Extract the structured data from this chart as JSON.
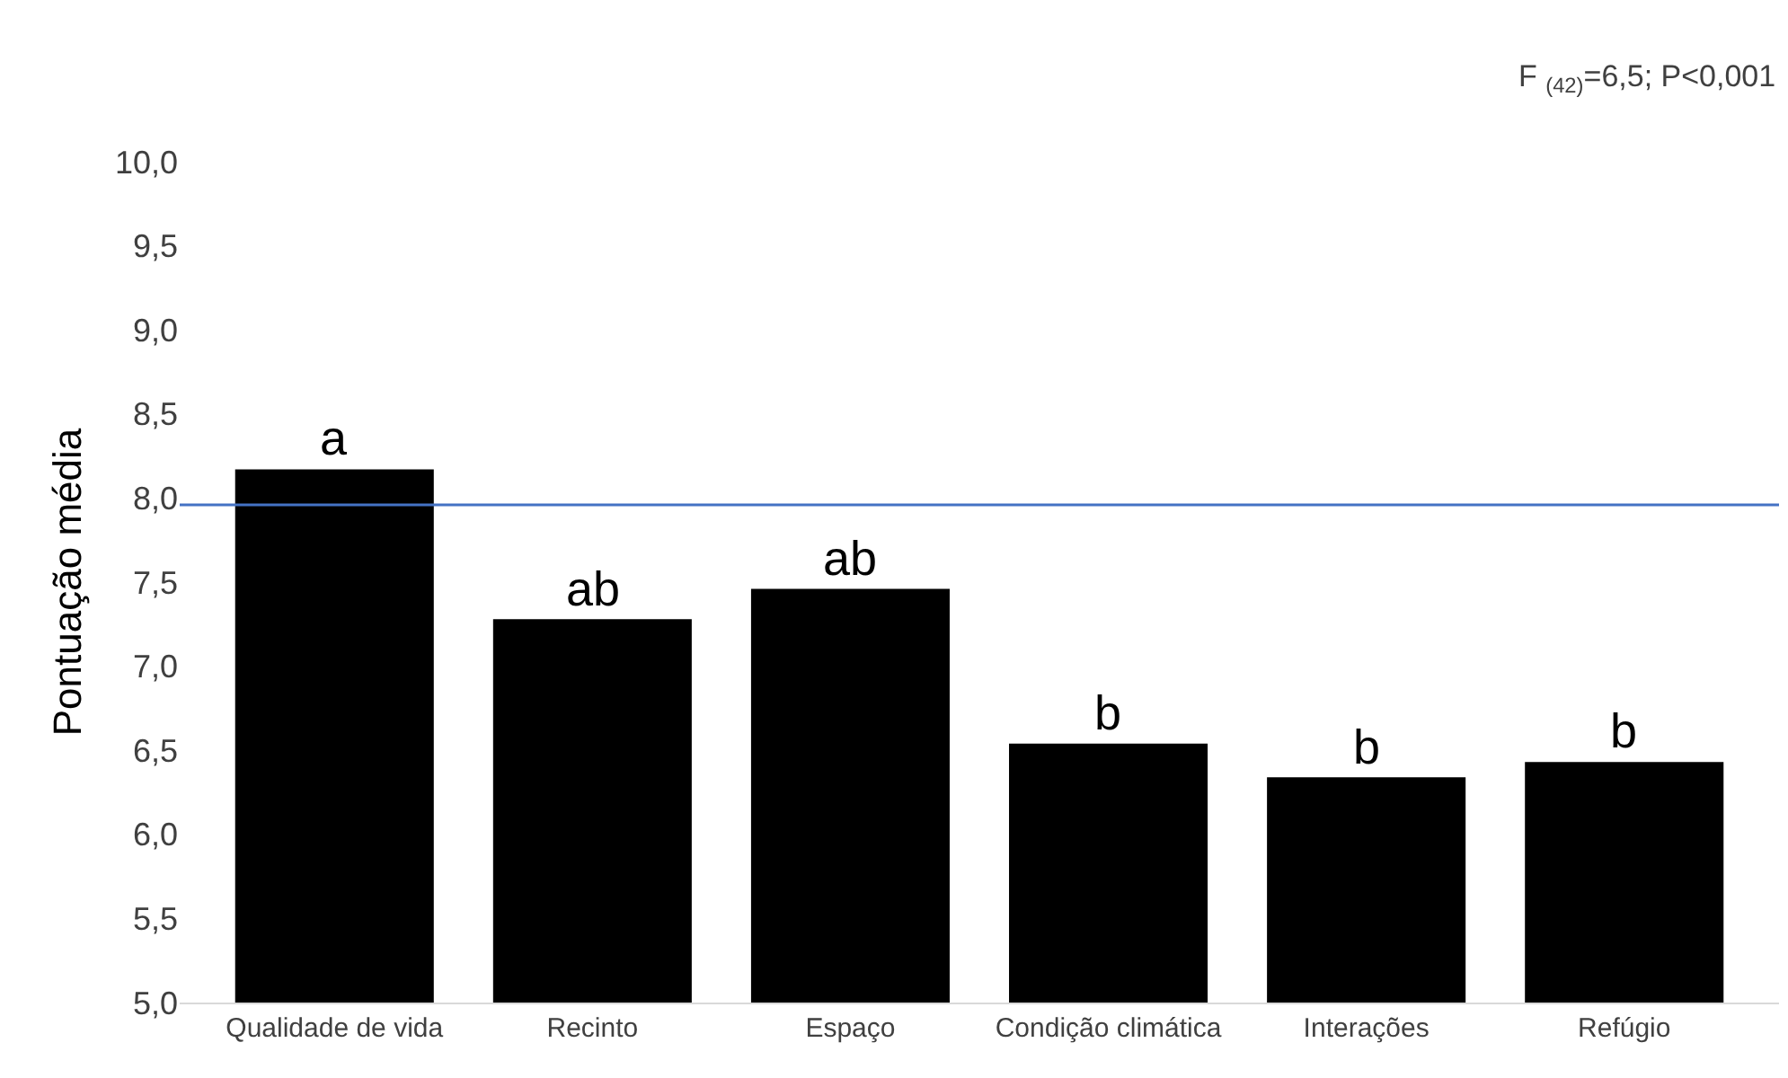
{
  "chart_data": {
    "type": "bar",
    "ylabel": "Pontuação média",
    "categories": [
      "Qualidade de vida",
      "Recinto",
      "Espaço",
      "Condição climática",
      "Interações",
      "Refúgio"
    ],
    "values": [
      8.17,
      7.28,
      7.46,
      6.54,
      6.34,
      6.43
    ],
    "color": "#000000",
    "ylim": [
      5,
      10
    ],
    "yticks": [
      {
        "value": 5,
        "label": "5,0"
      },
      {
        "value": 5.5,
        "label": "5,5"
      },
      {
        "value": 6,
        "label": "6,0"
      },
      {
        "value": 6.5,
        "label": "6,5"
      },
      {
        "value": 7,
        "label": "7,0"
      },
      {
        "value": 7.5,
        "label": "7,5"
      },
      {
        "value": 8,
        "label": "8,0"
      },
      {
        "value": 8.5,
        "label": "8,5"
      },
      {
        "value": 9,
        "label": "9,0"
      },
      {
        "value": 9.5,
        "label": "9,5"
      },
      {
        "value": 10,
        "label": "10,0"
      }
    ],
    "grid": false,
    "ref_lines": [
      {
        "axis": "y",
        "value": 7.96,
        "color": "#4472c4"
      }
    ],
    "annotations": [
      "F $_{(42)}$=6,5; P<0,001",
      {
        "text": "a",
        "x": "Qualidade de vida",
        "y": 8.17
      },
      {
        "text": "ab",
        "x": "Recinto",
        "y": 7.28
      },
      {
        "text": "ab",
        "x": "Espaço",
        "y": 7.46
      },
      {
        "text": "b",
        "x": "Condição climática",
        "y": 6.54
      },
      {
        "text": "b",
        "x": "Interações",
        "y": 6.34
      },
      {
        "text": "b",
        "x": "Refúgio",
        "y": 6.43
      }
    ]
  }
}
